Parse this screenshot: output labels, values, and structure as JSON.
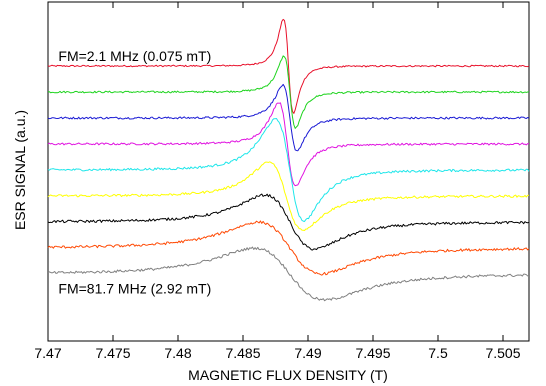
{
  "chart_data": {
    "type": "line",
    "title": "",
    "xlabel": "MAGNETIC FLUX DENSITY (T)",
    "ylabel": "ESR SIGNAL (a.u.)",
    "xlim": [
      7.47,
      7.507
    ],
    "xticks": [
      7.47,
      7.475,
      7.48,
      7.485,
      7.49,
      7.495,
      7.5,
      7.505
    ],
    "xtick_labels": [
      "7.47",
      "7.475",
      "7.48",
      "7.485",
      "7.49",
      "7.495",
      "7.5",
      "7.505"
    ],
    "yticks_shown": false,
    "grid": false,
    "legend": "none",
    "annotations": [
      {
        "text": "FM=2.1 MHz (0.075 mT)",
        "x": 7.4708,
        "y": 0.2
      },
      {
        "text": "FM=81.7 MHz (2.92 mT)",
        "x": 7.4708,
        "y": -8.75
      }
    ],
    "series": [
      {
        "color": "#e8102a",
        "baseline": 0.0,
        "center": 7.4885,
        "half_width": 0.00038,
        "amplitude": 2.1,
        "noise": 0.03
      },
      {
        "color": "#1fd41f",
        "baseline": -1.0,
        "center": 7.4886,
        "half_width": 0.00045,
        "amplitude": 1.6,
        "noise": 0.035
      },
      {
        "color": "#1a1ad4",
        "baseline": -2.0,
        "center": 7.4886,
        "half_width": 0.00055,
        "amplitude": 1.45,
        "noise": 0.04
      },
      {
        "color": "#e014e0",
        "baseline": -3.0,
        "center": 7.4884,
        "half_width": 0.00065,
        "amplitude": 1.85,
        "noise": 0.04
      },
      {
        "color": "#1fe6ea",
        "baseline": -4.0,
        "center": 7.4886,
        "half_width": 0.0011,
        "amplitude": 2.25,
        "noise": 0.045
      },
      {
        "color": "#ffff00",
        "baseline": -5.0,
        "center": 7.4883,
        "half_width": 0.0013,
        "amplitude": 1.5,
        "noise": 0.045
      },
      {
        "color": "#000000",
        "baseline": -6.0,
        "center": 7.4886,
        "half_width": 0.0019,
        "amplitude": 1.2,
        "noise": 0.05
      },
      {
        "color": "#ff4a05",
        "baseline": -7.0,
        "center": 7.4886,
        "half_width": 0.0024,
        "amplitude": 1.15,
        "noise": 0.05
      },
      {
        "color": "#808080",
        "baseline": -8.0,
        "center": 7.4886,
        "half_width": 0.0027,
        "amplitude": 1.15,
        "noise": 0.05
      }
    ]
  }
}
